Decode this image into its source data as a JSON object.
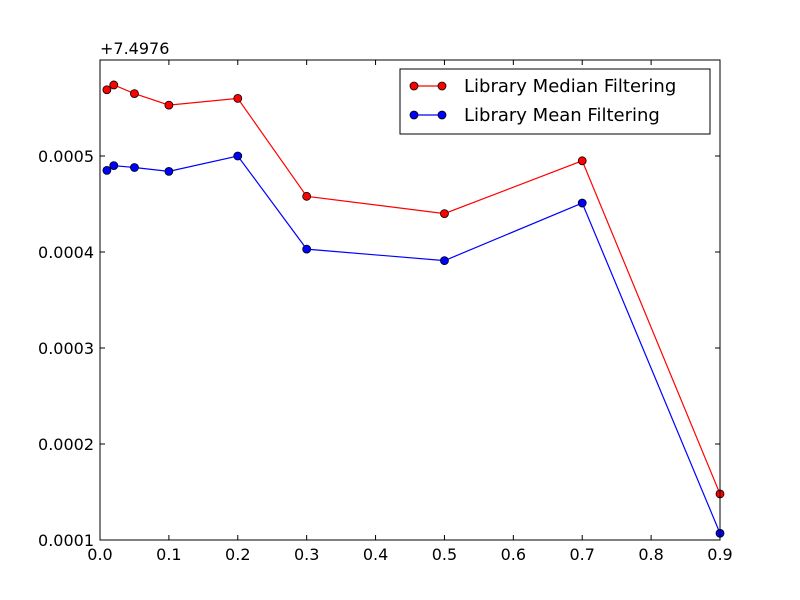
{
  "chart_data": {
    "type": "line",
    "title": "",
    "xlabel": "",
    "ylabel": "",
    "y_offset_label": "+7.4976",
    "xlim": [
      0.0,
      0.9
    ],
    "ylim": [
      0.0001,
      0.0006
    ],
    "x_ticks": [
      0.0,
      0.1,
      0.2,
      0.3,
      0.4,
      0.5,
      0.6,
      0.7,
      0.8,
      0.9
    ],
    "x_tick_labels": [
      "0.0",
      "0.1",
      "0.2",
      "0.3",
      "0.4",
      "0.5",
      "0.6",
      "0.7",
      "0.8",
      "0.9"
    ],
    "y_ticks": [
      0.0001,
      0.0002,
      0.0003,
      0.0004,
      0.0005
    ],
    "y_tick_labels": [
      "0.0001",
      "0.0002",
      "0.0003",
      "0.0004",
      "0.0005"
    ],
    "grid": false,
    "legend_position": "top-right",
    "x": [
      0.01,
      0.02,
      0.05,
      0.1,
      0.2,
      0.3,
      0.5,
      0.7,
      0.9
    ],
    "series": [
      {
        "name": "Library Median Filtering",
        "color": "#ff0000",
        "values": [
          0.000569,
          0.000574,
          0.000565,
          0.000553,
          0.00056,
          0.000458,
          0.00044,
          0.000495,
          0.000148
        ]
      },
      {
        "name": "Library Mean Filtering",
        "color": "#0000ff",
        "values": [
          0.000485,
          0.00049,
          0.000488,
          0.000484,
          0.0005,
          0.000403,
          0.000391,
          0.000451,
          0.000107
        ]
      }
    ]
  }
}
